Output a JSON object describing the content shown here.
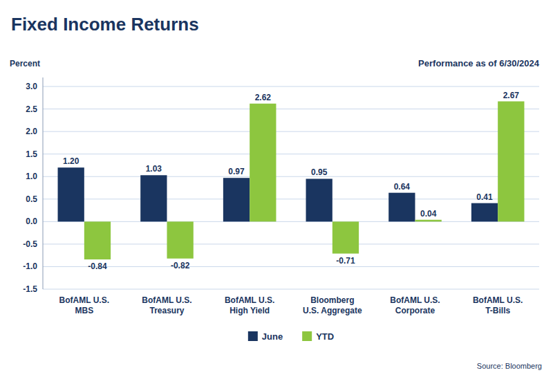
{
  "chart_data": {
    "type": "bar",
    "title": "Fixed Income Returns",
    "ylabel": "Percent",
    "annotations": [
      "Performance as of 6/30/2024",
      "Source: Bloomberg"
    ],
    "categories": [
      "BofAML U.S.\nMBS",
      "BofAML U.S.\nTreasury",
      "BofAML U.S.\nHigh Yield",
      "Bloomberg\nU.S. Aggregate",
      "BofAML U.S.\nCorporate",
      "BofAML U.S.\nT-Bills"
    ],
    "series": [
      {
        "name": "June",
        "color": "#1a3560",
        "values": [
          1.2,
          1.03,
          0.97,
          0.95,
          0.64,
          0.41
        ],
        "value_labels": [
          "1.20",
          "1.03",
          "0.97",
          "0.95",
          "0.64",
          "0.41"
        ]
      },
      {
        "name": "YTD",
        "color": "#8dc63f",
        "values": [
          -0.84,
          -0.82,
          2.62,
          -0.71,
          0.04,
          2.67
        ],
        "value_labels": [
          "-0.84",
          "-0.82",
          "2.62",
          "-0.71",
          "0.04",
          "2.67"
        ]
      }
    ],
    "ylim": [
      -1.5,
      3.2
    ],
    "yticks": [
      -1.5,
      {
        "value": -1,
        "label": "-1.0"
      },
      -0.5,
      {
        "value": 0,
        "label": "0.0"
      },
      0.5,
      {
        "value": 1,
        "label": "1.0"
      },
      1.5,
      {
        "value": 2,
        "label": "2.0"
      },
      2.5,
      {
        "value": 3,
        "label": "3.0"
      }
    ],
    "grid": true,
    "legend": "bottom",
    "data_labels": true
  }
}
